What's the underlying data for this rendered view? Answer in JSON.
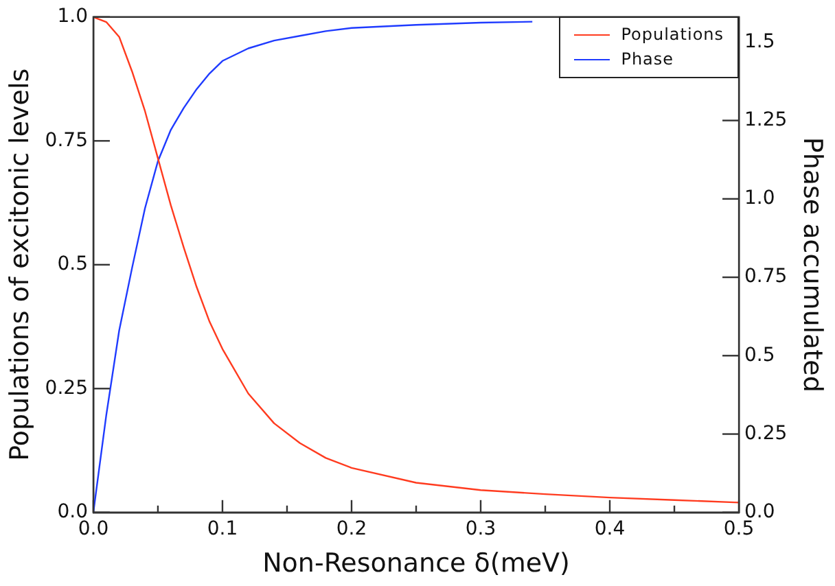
{
  "chart_data": {
    "type": "line",
    "xlabel": "Non-Resonance δ(meV)",
    "ylabel": "Populations of excitonic levels",
    "y2label": "Phase accumulated",
    "xlim": [
      0,
      0.5
    ],
    "xticks": [
      {
        "value": 0,
        "label": "0.0"
      },
      {
        "value": 0.05,
        "label": null
      },
      0.1,
      {
        "value": 0.15,
        "label": null
      },
      0.2,
      {
        "value": 0.25,
        "label": null
      },
      0.3,
      {
        "value": 0.35,
        "label": null
      },
      0.4,
      {
        "value": 0.45,
        "label": null
      },
      0.5
    ],
    "ylim": [
      0,
      1
    ],
    "yticks": [
      {
        "value": 0,
        "label": "0.0"
      },
      0.25,
      0.5,
      0.75,
      {
        "value": 1,
        "label": "1.0"
      }
    ],
    "y2lim": [
      0,
      1.58
    ],
    "y2ticks": [
      {
        "value": 0,
        "label": "0.0"
      },
      0.25,
      0.5,
      0.75,
      {
        "value": 1,
        "label": "1.0"
      },
      1.25,
      1.5
    ],
    "grid": false,
    "legend": "top right",
    "marker": "none",
    "line_style": "solid",
    "series": [
      {
        "name": "Populations",
        "color": "#ff3b1f",
        "x": [
          0,
          0.01,
          0.02,
          0.03,
          0.04,
          0.05,
          0.06,
          0.07,
          0.08,
          0.09,
          0.1,
          0.12,
          0.14,
          0.16,
          0.18,
          0.2,
          0.25,
          0.3,
          0.35,
          0.4,
          0.45,
          0.5
        ],
        "values": [
          1,
          0.99,
          0.96,
          0.89,
          0.81,
          0.715,
          0.62,
          0.535,
          0.455,
          0.385,
          0.33,
          0.24,
          0.18,
          0.14,
          0.11,
          0.09,
          0.06,
          0.045,
          0.037,
          0.03,
          0.025,
          0.02
        ]
      },
      {
        "name": "Phase",
        "color": "#1f3bff",
        "axis": "y2",
        "x": [
          0,
          0.01,
          0.02,
          0.03,
          0.04,
          0.05,
          0.06,
          0.07,
          0.08,
          0.09,
          0.1,
          0.12,
          0.14,
          0.16,
          0.18,
          0.2,
          0.25,
          0.3,
          0.34
        ],
        "values": [
          0,
          0.31,
          0.58,
          0.78,
          0.97,
          1.12,
          1.22,
          1.29,
          1.35,
          1.4,
          1.44,
          1.48,
          1.505,
          1.52,
          1.535,
          1.545,
          1.555,
          1.562,
          1.565
        ]
      }
    ]
  }
}
